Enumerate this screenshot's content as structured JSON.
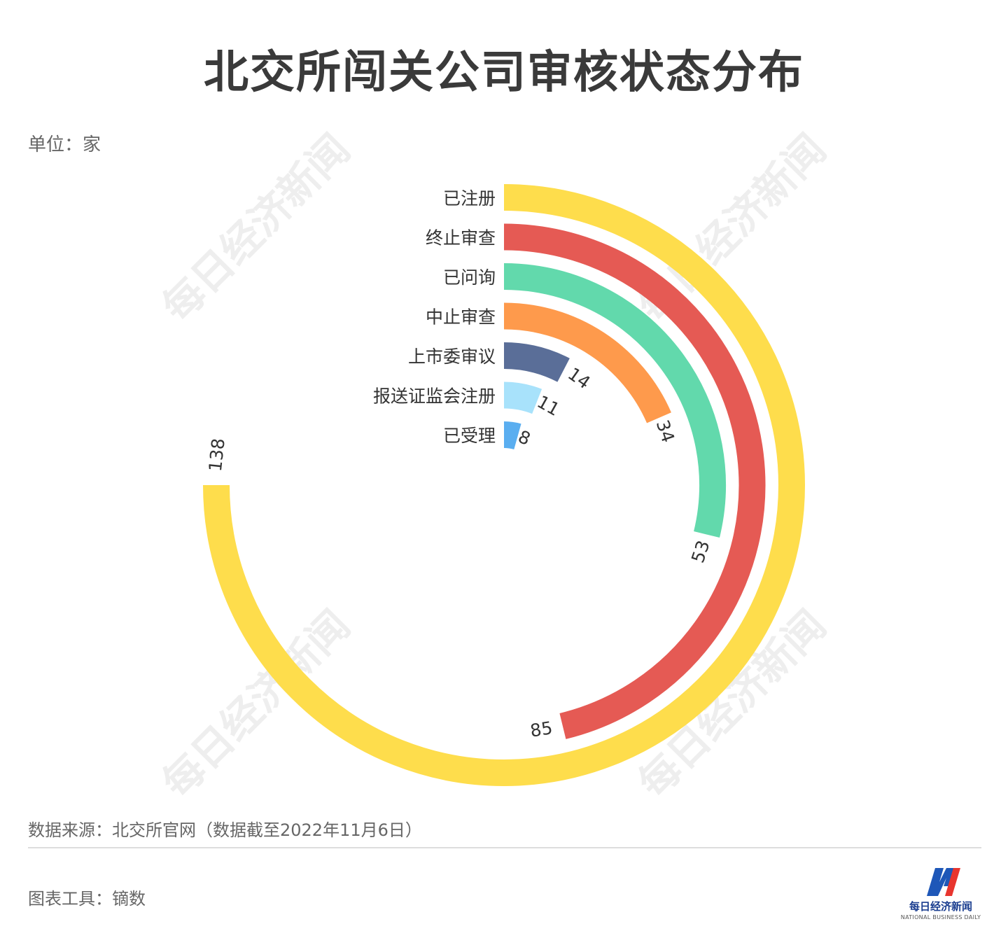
{
  "title": "北交所闯关公司审核状态分布",
  "unit": "单位：家",
  "source": "数据来源：北交所官网（数据截至2022年11月6日）",
  "tool": "图表工具：镝数",
  "watermark": "每日经济新闻",
  "logo": {
    "name": "每日经济新闻",
    "en": "NATIONAL BUSINESS DAILY",
    "colors": [
      "#1e57b8",
      "#e8352e"
    ]
  },
  "chart_data": {
    "type": "radial-bar",
    "max": 138,
    "categories": [
      "已注册",
      "终止审查",
      "已问询",
      "中止审查",
      "上市委审议",
      "报送证监会注册",
      "已受理"
    ],
    "values": [
      138,
      85,
      53,
      34,
      14,
      11,
      8
    ],
    "value_labels": [
      "138",
      "85",
      "53",
      "34",
      "14",
      "11",
      "8"
    ],
    "colors": [
      "#fedd4c",
      "#e55a54",
      "#62d9ac",
      "#fe9a4c",
      "#5a6e98",
      "#a8e2fb",
      "#5aaef0"
    ]
  }
}
